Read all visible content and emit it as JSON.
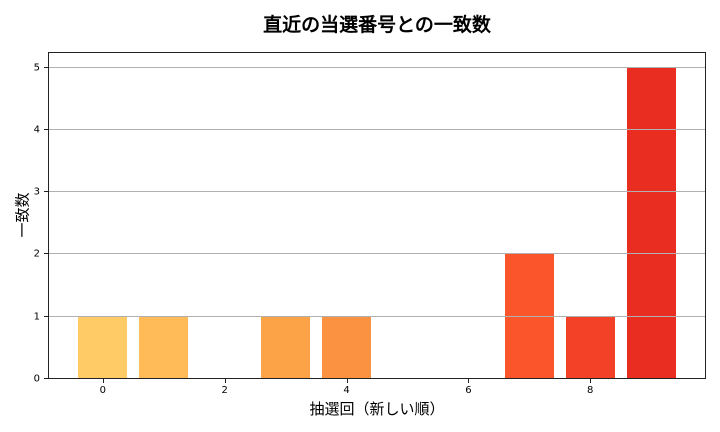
{
  "chart_data": {
    "type": "bar",
    "title": "直近の当選番号との一致数",
    "xlabel": "抽選回（新しい順）",
    "ylabel": "一致数",
    "categories": [
      0,
      1,
      2,
      3,
      4,
      5,
      6,
      7,
      8,
      9
    ],
    "values": [
      1,
      1,
      0,
      1,
      1,
      0,
      0,
      2,
      1,
      5
    ],
    "colors": [
      "#fecb67",
      "#febb58",
      "#fea94c",
      "#fca247",
      "#fb9241",
      "#fa7a36",
      "#f9662f",
      "#fb552b",
      "#f24126",
      "#e92d21"
    ],
    "xticks": [
      0,
      2,
      4,
      6,
      8
    ],
    "yticks": [
      0,
      1,
      2,
      3,
      4,
      5
    ],
    "xlim": [
      -0.9,
      9.9
    ],
    "ylim": [
      0,
      5.25
    ],
    "grid": "y",
    "legend": "none"
  }
}
